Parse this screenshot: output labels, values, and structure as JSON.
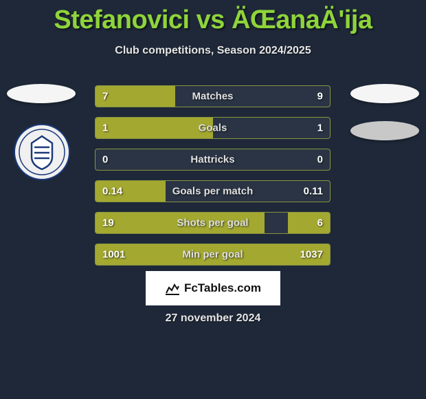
{
  "title": "Stefanovici vs ÄŒanaÄ'ija",
  "subtitle": "Club competitions, Season 2024/2025",
  "colors": {
    "background": "#1e2838",
    "title_color": "#8fd43a",
    "text_color": "#e6e6e6",
    "bar_fill": "#a3a830",
    "bar_border": "#8a9440",
    "bar_bg": "#2a3444"
  },
  "bars": [
    {
      "label": "Matches",
      "left_val": "7",
      "right_val": "9",
      "left_pct": 34,
      "right_pct": 0
    },
    {
      "label": "Goals",
      "left_val": "1",
      "right_val": "1",
      "left_pct": 50,
      "right_pct": 0
    },
    {
      "label": "Hattricks",
      "left_val": "0",
      "right_val": "0",
      "left_pct": 0,
      "right_pct": 0
    },
    {
      "label": "Goals per match",
      "left_val": "0.14",
      "right_val": "0.11",
      "left_pct": 30,
      "right_pct": 0
    },
    {
      "label": "Shots per goal",
      "left_val": "19",
      "right_val": "6",
      "left_pct": 72,
      "right_pct": 18
    },
    {
      "label": "Min per goal",
      "left_val": "1001",
      "right_val": "1037",
      "left_pct": 50,
      "right_pct": 50
    }
  ],
  "footer_brand": "FcTables.com",
  "date": "27 november 2024"
}
